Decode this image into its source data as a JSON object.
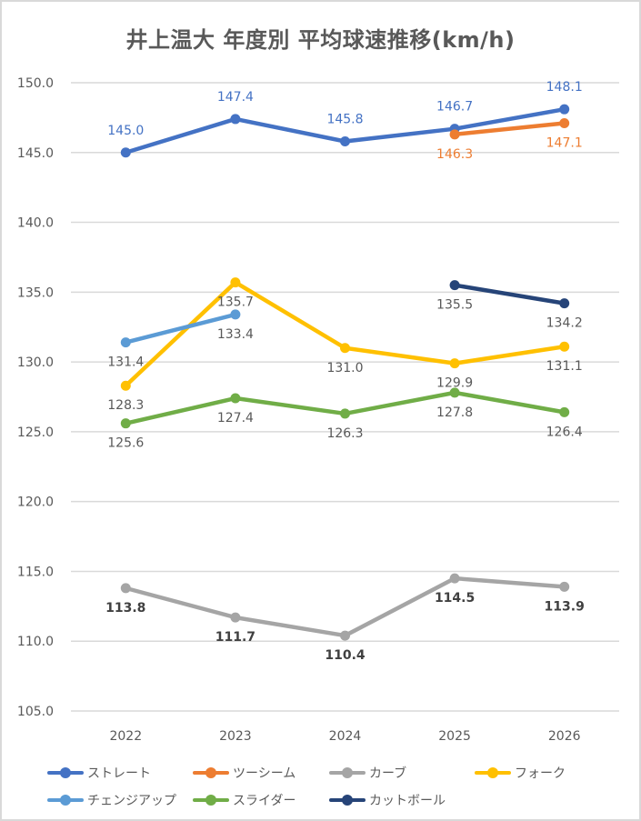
{
  "chart_data": {
    "type": "line",
    "title": "井上温大 年度別 平均球速推移(km/h)",
    "xlabel": "",
    "ylabel": "",
    "categories": [
      "2022",
      "2023",
      "2024",
      "2025",
      "2026"
    ],
    "ylim": [
      105.0,
      150.0
    ],
    "yticks": [
      "150.0",
      "145.0",
      "140.0",
      "135.0",
      "130.0",
      "125.0",
      "120.0",
      "115.0",
      "110.0",
      "105.0"
    ],
    "ytick_values": [
      150,
      145,
      140,
      135,
      130,
      125,
      120,
      115,
      110,
      105
    ],
    "grid": true,
    "legend_position": "bottom",
    "series": [
      {
        "name": "ストレート",
        "color": "#4472c4",
        "label_color": "#4472c4",
        "label_pos": "above",
        "label_bold": false,
        "values": [
          145.0,
          147.4,
          145.8,
          146.7,
          148.1
        ]
      },
      {
        "name": "ツーシーム",
        "color": "#ed7d31",
        "label_color": "#ed7d31",
        "label_pos": "below",
        "label_bold": false,
        "values": [
          null,
          null,
          null,
          146.3,
          147.1
        ]
      },
      {
        "name": "カーブ",
        "color": "#a5a5a5",
        "label_color": "#404040",
        "label_pos": "below",
        "label_bold": true,
        "values": [
          113.8,
          111.7,
          110.4,
          114.5,
          113.9
        ]
      },
      {
        "name": "フォーク",
        "color": "#ffc000",
        "label_color": "#595959",
        "label_pos": "below",
        "label_bold": false,
        "values": [
          128.3,
          135.7,
          131.0,
          129.9,
          131.1
        ]
      },
      {
        "name": "チェンジアップ",
        "color": "#5b9bd5",
        "label_color": "#595959",
        "label_pos": "below",
        "label_bold": false,
        "values": [
          131.4,
          133.4,
          null,
          null,
          null
        ]
      },
      {
        "name": "スライダー",
        "color": "#70ad47",
        "label_color": "#595959",
        "label_pos": "below",
        "label_bold": false,
        "values": [
          125.6,
          127.4,
          126.3,
          127.8,
          126.4
        ]
      },
      {
        "name": "カットボール",
        "color": "#264478",
        "label_color": "#595959",
        "label_pos": "below",
        "label_bold": false,
        "values": [
          null,
          null,
          null,
          135.5,
          134.2
        ]
      }
    ]
  }
}
